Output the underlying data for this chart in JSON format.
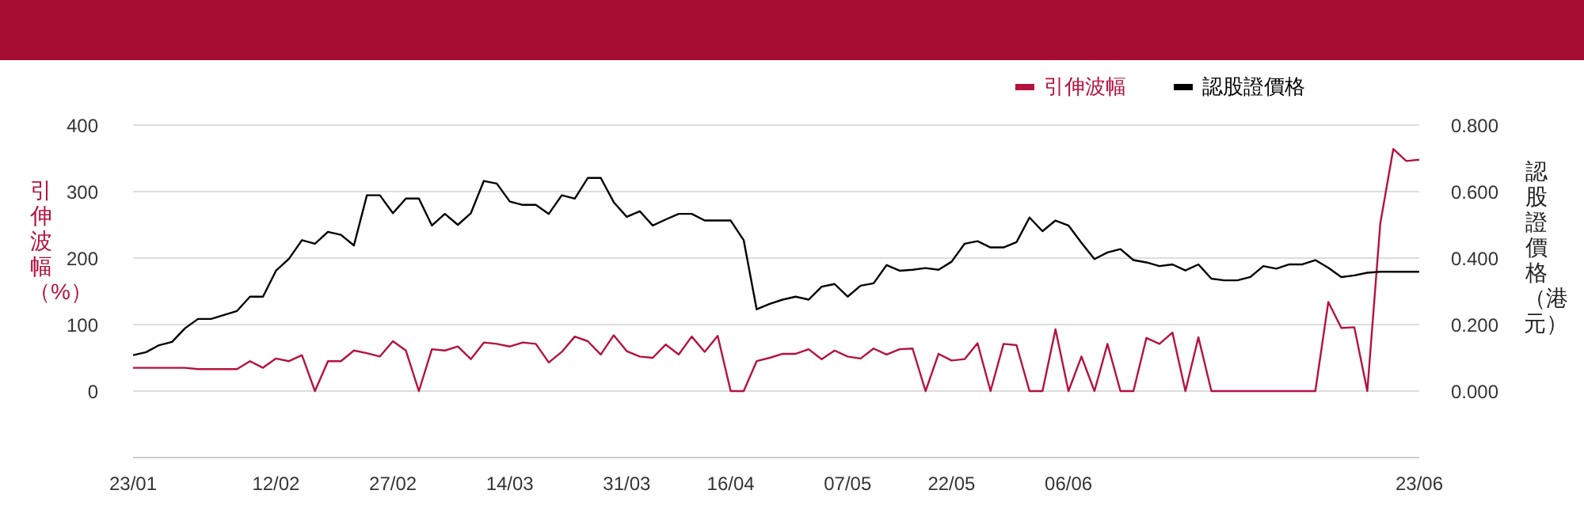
{
  "chart_data": {
    "type": "line",
    "ylabel": "引伸波幅（%）",
    "y2label": "認股證價格（港元）",
    "categories": [
      "23/01",
      null,
      null,
      null,
      null,
      null,
      null,
      null,
      null,
      null,
      null,
      "12/02",
      null,
      null,
      null,
      null,
      null,
      null,
      null,
      null,
      "27/02",
      null,
      null,
      null,
      null,
      null,
      null,
      null,
      null,
      "14/03",
      null,
      null,
      null,
      null,
      null,
      null,
      null,
      null,
      "31/03",
      null,
      null,
      null,
      null,
      null,
      null,
      null,
      "16/04",
      null,
      null,
      null,
      null,
      null,
      null,
      null,
      null,
      "07/05",
      null,
      null,
      null,
      null,
      null,
      null,
      null,
      "22/05",
      null,
      null,
      null,
      null,
      null,
      null,
      null,
      null,
      "06/06",
      null,
      null,
      null,
      null,
      null,
      null,
      null,
      null,
      null,
      null,
      null,
      null,
      null,
      null,
      null,
      null,
      null,
      null,
      null,
      null,
      null,
      null,
      null,
      null,
      null,
      null,
      "23/06"
    ],
    "series": [
      {
        "name": "引伸波幅",
        "color": "#b5123e",
        "values": [
          35,
          35,
          35,
          35,
          35,
          33,
          33,
          33,
          33,
          45,
          35,
          49,
          45,
          54,
          0,
          45,
          45,
          61,
          57,
          52,
          75,
          61,
          0,
          63,
          61,
          67,
          48,
          73,
          71,
          67,
          73,
          71,
          43,
          59,
          82,
          75,
          55,
          84,
          60,
          52,
          50,
          70,
          55,
          82,
          59,
          83,
          0,
          0,
          45,
          50,
          56,
          56,
          63,
          48,
          61,
          52,
          49,
          64,
          55,
          63,
          64,
          0,
          56,
          46,
          48,
          72,
          0,
          71,
          69,
          0,
          0,
          93,
          0,
          52,
          0,
          71,
          0,
          0,
          80,
          71,
          88,
          0,
          81,
          0,
          0,
          0,
          0,
          0,
          0,
          0,
          0,
          0,
          134,
          95,
          96,
          0,
          252,
          364,
          346,
          348
        ]
      },
      {
        "name": "認股證價格",
        "color": "#000000",
        "axis": "y2",
        "values": [
          0.108,
          0.117,
          0.138,
          0.148,
          0.189,
          0.217,
          0.217,
          0.229,
          0.241,
          0.284,
          0.284,
          0.362,
          0.398,
          0.454,
          0.443,
          0.479,
          0.47,
          0.438,
          0.589,
          0.589,
          0.535,
          0.579,
          0.579,
          0.498,
          0.533,
          0.5,
          0.535,
          0.632,
          0.624,
          0.57,
          0.56,
          0.56,
          0.533,
          0.589,
          0.579,
          0.641,
          0.641,
          0.568,
          0.524,
          0.541,
          0.498,
          0.516,
          0.533,
          0.533,
          0.513,
          0.513,
          0.513,
          0.454,
          0.246,
          0.262,
          0.275,
          0.284,
          0.275,
          0.314,
          0.322,
          0.284,
          0.317,
          0.324,
          0.379,
          0.362,
          0.365,
          0.37,
          0.365,
          0.389,
          0.443,
          0.451,
          0.432,
          0.432,
          0.448,
          0.522,
          0.481,
          0.513,
          0.498,
          0.446,
          0.397,
          0.417,
          0.427,
          0.394,
          0.387,
          0.376,
          0.381,
          0.363,
          0.381,
          0.338,
          0.333,
          0.333,
          0.343,
          0.376,
          0.368,
          0.381,
          0.381,
          0.394,
          0.371,
          0.343,
          0.348,
          0.356,
          0.359,
          0.359,
          0.359,
          0.359
        ]
      }
    ],
    "ylim": [
      -100,
      400
    ],
    "yticks": [
      0,
      100,
      200,
      300,
      400
    ],
    "y2lim": [
      -0.2,
      0.8
    ],
    "y2ticks": [
      {
        "value": 0,
        "label": "0.000"
      },
      {
        "value": 0.2,
        "label": "0.200"
      },
      {
        "value": 0.4,
        "label": "0.400"
      },
      {
        "value": 0.6,
        "label": "0.600"
      },
      {
        "value": 0.8,
        "label": "0.800"
      }
    ],
    "grid": "y",
    "legend": "top right"
  }
}
